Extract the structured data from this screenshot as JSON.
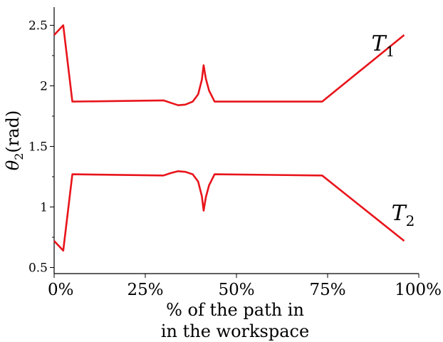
{
  "chart_data": {
    "type": "line",
    "title": "",
    "xlabel_lines": [
      "% of the path in",
      "in the workspace"
    ],
    "ylabel_symbol": "θ",
    "ylabel_sub": "2",
    "ylabel_unit": "(rad)",
    "xlim": [
      0,
      100
    ],
    "ylim": [
      0.45,
      2.65
    ],
    "x_ticks": [
      0,
      25,
      50,
      75,
      100
    ],
    "x_tick_labels": [
      "0%",
      "25%",
      "50%",
      "75%",
      "100%"
    ],
    "y_ticks": [
      0.5,
      1,
      1.5,
      2,
      2.5
    ],
    "y_tick_labels": [
      "0.5",
      "1",
      "1.5",
      "2",
      "2.5"
    ],
    "y_minor_ticks": [
      0.75,
      1.25,
      1.75,
      2.25
    ],
    "grid": false,
    "line_color": "#e8141b",
    "series": [
      {
        "name": "T",
        "name_sub": "1",
        "label_at": [
          87,
          2.35
        ],
        "points": [
          [
            0,
            2.42
          ],
          [
            2.5,
            2.5
          ],
          [
            5,
            1.87
          ],
          [
            30,
            1.88
          ],
          [
            32,
            1.86
          ],
          [
            34,
            1.84
          ],
          [
            36,
            1.845
          ],
          [
            38,
            1.87
          ],
          [
            39.5,
            1.93
          ],
          [
            40.5,
            2.05
          ],
          [
            41,
            2.17
          ],
          [
            41.6,
            2.06
          ],
          [
            42.5,
            1.96
          ],
          [
            44,
            1.87
          ],
          [
            73.5,
            1.87
          ],
          [
            96,
            2.42
          ]
        ]
      },
      {
        "name": "T",
        "name_sub": "2",
        "label_at": [
          92.5,
          0.95
        ],
        "points": [
          [
            0,
            0.72
          ],
          [
            2.5,
            0.64
          ],
          [
            5,
            1.27
          ],
          [
            30,
            1.26
          ],
          [
            32,
            1.28
          ],
          [
            34,
            1.295
          ],
          [
            36,
            1.29
          ],
          [
            38,
            1.27
          ],
          [
            39.5,
            1.21
          ],
          [
            40.5,
            1.09
          ],
          [
            41,
            0.97
          ],
          [
            41.6,
            1.08
          ],
          [
            42.5,
            1.18
          ],
          [
            44,
            1.27
          ],
          [
            73.5,
            1.26
          ],
          [
            96,
            0.72
          ]
        ]
      }
    ]
  }
}
